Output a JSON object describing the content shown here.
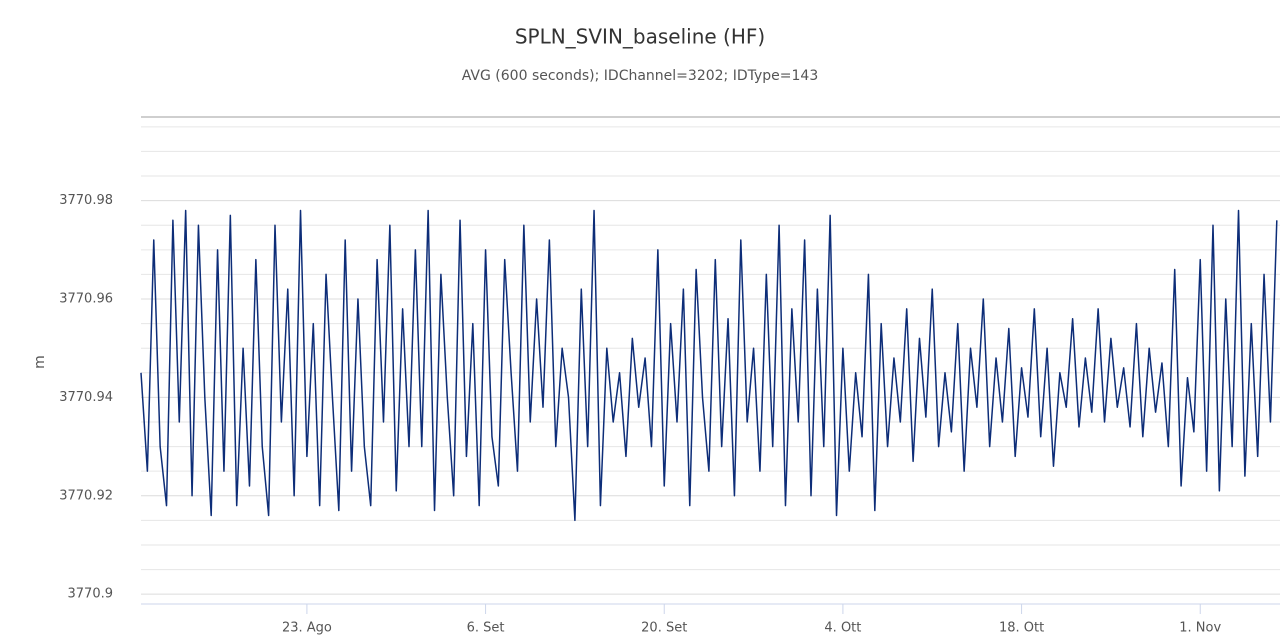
{
  "chart_data": {
    "type": "line",
    "title": "SPLN_SVIN_baseline (HF)",
    "subtitle": "AVG (600 seconds); IDChannel=3202; IDType=143",
    "y_label": "m",
    "xlim": [
      "08-10 00:00",
      "11-07 06:00"
    ],
    "xticks": [
      {
        "value": "08-23 00:00",
        "label": "23. Ago"
      },
      {
        "value": "09-06 00:00",
        "label": "6. Set"
      },
      {
        "value": "09-20 00:00",
        "label": "20. Set"
      },
      {
        "value": "10-04 00:00",
        "label": "4. Ott"
      },
      {
        "value": "10-18 00:00",
        "label": "18. Ott"
      },
      {
        "value": "11-01 00:00",
        "label": "1. Nov"
      }
    ],
    "ylim": [
      3770.898,
      3770.997
    ],
    "yticks": [
      3770.9,
      3770.92,
      3770.94,
      3770.96,
      3770.98
    ],
    "yminorticks": [
      3770.905,
      3770.91,
      3770.915,
      3770.925,
      3770.93,
      3770.935,
      3770.945,
      3770.95,
      3770.955,
      3770.965,
      3770.97,
      3770.975,
      3770.985,
      3770.99,
      3770.995
    ],
    "grid": true,
    "series": [
      {
        "name": "SPLN_SVIN_baseline",
        "color": "#0d2d78",
        "x": [
          "08-10 00:00",
          "08-10 12:00",
          "08-11 00:00",
          "08-11 12:00",
          "08-12 00:00",
          "08-12 12:00",
          "08-13 00:00",
          "08-13 12:00",
          "08-14 00:00",
          "08-14 12:00",
          "08-15 00:00",
          "08-15 12:00",
          "08-16 00:00",
          "08-16 12:00",
          "08-17 00:00",
          "08-17 12:00",
          "08-18 00:00",
          "08-18 12:00",
          "08-19 00:00",
          "08-19 12:00",
          "08-20 00:00",
          "08-20 12:00",
          "08-21 00:00",
          "08-21 12:00",
          "08-22 00:00",
          "08-22 12:00",
          "08-23 00:00",
          "08-23 12:00",
          "08-24 00:00",
          "08-24 12:00",
          "08-25 00:00",
          "08-25 12:00",
          "08-26 00:00",
          "08-26 12:00",
          "08-27 00:00",
          "08-27 12:00",
          "08-28 00:00",
          "08-28 12:00",
          "08-29 00:00",
          "08-29 12:00",
          "08-30 00:00",
          "08-30 12:00",
          "08-31 00:00",
          "08-31 12:00",
          "09-01 00:00",
          "09-01 12:00",
          "09-02 00:00",
          "09-02 12:00",
          "09-03 00:00",
          "09-03 12:00",
          "09-04 00:00",
          "09-04 12:00",
          "09-05 00:00",
          "09-05 12:00",
          "09-06 00:00",
          "09-06 12:00",
          "09-07 00:00",
          "09-07 12:00",
          "09-08 00:00",
          "09-08 12:00",
          "09-09 00:00",
          "09-09 12:00",
          "09-10 00:00",
          "09-10 12:00",
          "09-11 00:00",
          "09-11 12:00",
          "09-12 00:00",
          "09-12 12:00",
          "09-13 00:00",
          "09-13 12:00",
          "09-14 00:00",
          "09-14 12:00",
          "09-15 00:00",
          "09-15 12:00",
          "09-16 00:00",
          "09-16 12:00",
          "09-17 00:00",
          "09-17 12:00",
          "09-18 00:00",
          "09-18 12:00",
          "09-19 00:00",
          "09-19 12:00",
          "09-20 00:00",
          "09-20 12:00",
          "09-21 00:00",
          "09-21 12:00",
          "09-22 00:00",
          "09-22 12:00",
          "09-23 00:00",
          "09-23 12:00",
          "09-24 00:00",
          "09-24 12:00",
          "09-25 00:00",
          "09-25 12:00",
          "09-26 00:00",
          "09-26 12:00",
          "09-27 00:00",
          "09-27 12:00",
          "09-28 00:00",
          "09-28 12:00",
          "09-29 00:00",
          "09-29 12:00",
          "09-30 00:00",
          "09-30 12:00",
          "10-01 00:00",
          "10-01 12:00",
          "10-02 00:00",
          "10-02 12:00",
          "10-03 00:00",
          "10-03 12:00",
          "10-04 00:00",
          "10-04 12:00",
          "10-05 00:00",
          "10-05 12:00",
          "10-06 00:00",
          "10-06 12:00",
          "10-07 00:00",
          "10-07 12:00",
          "10-08 00:00",
          "10-08 12:00",
          "10-09 00:00",
          "10-09 12:00",
          "10-10 00:00",
          "10-10 12:00",
          "10-11 00:00",
          "10-11 12:00",
          "10-12 00:00",
          "10-12 12:00",
          "10-13 00:00",
          "10-13 12:00",
          "10-14 00:00",
          "10-14 12:00",
          "10-15 00:00",
          "10-15 12:00",
          "10-16 00:00",
          "10-16 12:00",
          "10-17 00:00",
          "10-17 12:00",
          "10-18 00:00",
          "10-18 12:00",
          "10-19 00:00",
          "10-19 12:00",
          "10-20 00:00",
          "10-20 12:00",
          "10-21 00:00",
          "10-21 12:00",
          "10-22 00:00",
          "10-22 12:00",
          "10-23 00:00",
          "10-23 12:00",
          "10-24 00:00",
          "10-24 12:00",
          "10-25 00:00",
          "10-25 12:00",
          "10-26 00:00",
          "10-26 12:00",
          "10-27 00:00",
          "10-27 12:00",
          "10-28 00:00",
          "10-28 12:00",
          "10-29 00:00",
          "10-29 12:00",
          "10-30 00:00",
          "10-30 12:00",
          "10-31 00:00",
          "10-31 12:00",
          "11-01 00:00",
          "11-01 12:00",
          "11-02 00:00",
          "11-02 12:00",
          "11-03 00:00",
          "11-03 12:00",
          "11-04 00:00",
          "11-04 12:00",
          "11-05 00:00",
          "11-05 12:00",
          "11-06 00:00",
          "11-06 12:00",
          "11-07 00:00"
        ],
        "values": [
          3770.945,
          3770.925,
          3770.972,
          3770.93,
          3770.918,
          3770.976,
          3770.935,
          3770.978,
          3770.92,
          3770.975,
          3770.94,
          3770.916,
          3770.97,
          3770.925,
          3770.977,
          3770.918,
          3770.95,
          3770.922,
          3770.968,
          3770.93,
          3770.916,
          3770.975,
          3770.935,
          3770.962,
          3770.92,
          3770.978,
          3770.928,
          3770.955,
          3770.918,
          3770.965,
          3770.94,
          3770.917,
          3770.972,
          3770.925,
          3770.96,
          3770.93,
          3770.918,
          3770.968,
          3770.935,
          3770.975,
          3770.921,
          3770.958,
          3770.93,
          3770.97,
          3770.93,
          3770.978,
          3770.917,
          3770.965,
          3770.94,
          3770.92,
          3770.976,
          3770.928,
          3770.955,
          3770.918,
          3770.97,
          3770.932,
          3770.922,
          3770.968,
          3770.945,
          3770.925,
          3770.975,
          3770.935,
          3770.96,
          3770.938,
          3770.972,
          3770.93,
          3770.95,
          3770.94,
          3770.915,
          3770.962,
          3770.93,
          3770.978,
          3770.918,
          3770.95,
          3770.935,
          3770.945,
          3770.928,
          3770.952,
          3770.938,
          3770.948,
          3770.93,
          3770.97,
          3770.922,
          3770.955,
          3770.935,
          3770.962,
          3770.918,
          3770.966,
          3770.94,
          3770.925,
          3770.968,
          3770.93,
          3770.956,
          3770.92,
          3770.972,
          3770.935,
          3770.95,
          3770.925,
          3770.965,
          3770.93,
          3770.975,
          3770.918,
          3770.958,
          3770.935,
          3770.972,
          3770.92,
          3770.962,
          3770.93,
          3770.977,
          3770.916,
          3770.95,
          3770.925,
          3770.945,
          3770.932,
          3770.965,
          3770.917,
          3770.955,
          3770.93,
          3770.948,
          3770.935,
          3770.958,
          3770.927,
          3770.952,
          3770.936,
          3770.962,
          3770.93,
          3770.945,
          3770.933,
          3770.955,
          3770.925,
          3770.95,
          3770.938,
          3770.96,
          3770.93,
          3770.948,
          3770.935,
          3770.954,
          3770.928,
          3770.946,
          3770.936,
          3770.958,
          3770.932,
          3770.95,
          3770.926,
          3770.945,
          3770.938,
          3770.956,
          3770.934,
          3770.948,
          3770.937,
          3770.958,
          3770.935,
          3770.952,
          3770.938,
          3770.946,
          3770.934,
          3770.955,
          3770.932,
          3770.95,
          3770.937,
          3770.947,
          3770.93,
          3770.966,
          3770.922,
          3770.944,
          3770.933,
          3770.968,
          3770.925,
          3770.975,
          3770.921,
          3770.96,
          3770.93,
          3770.978,
          3770.924,
          3770.955,
          3770.928,
          3770.965,
          3770.935,
          3770.976
        ]
      }
    ]
  }
}
